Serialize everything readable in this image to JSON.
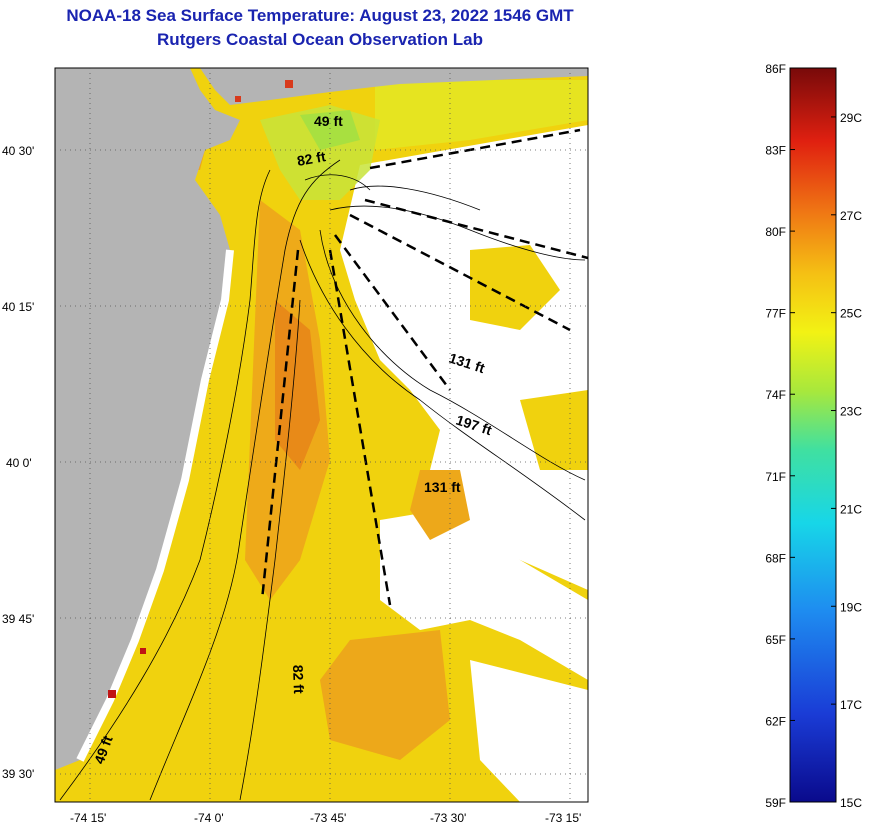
{
  "header": {
    "title": "NOAA-18 Sea Surface Temperature:  August 23, 2022 1546 GMT",
    "subtitle": "Rutgers Coastal Ocean Observation Lab"
  },
  "map": {
    "lat_ticks": [
      "40 30'",
      "40 15'",
      "40 0'",
      "39 45'",
      "39 30'"
    ],
    "lon_ticks": [
      "-74 15'",
      "-74 0'",
      "-73 45'",
      "-73 30'",
      "-73 15'"
    ],
    "depth_labels": [
      "49 ft",
      "82 ft",
      "131 ft",
      "197 ft",
      "131 ft",
      "82 ft",
      "49 ft"
    ]
  },
  "colorbar": {
    "fahrenheit": [
      "86F",
      "83F",
      "80F",
      "77F",
      "74F",
      "71F",
      "68F",
      "65F",
      "62F",
      "59F"
    ],
    "celsius": [
      "29C",
      "27C",
      "25C",
      "23C",
      "21C",
      "19C",
      "17C",
      "15C"
    ],
    "min_f": 59,
    "max_f": 86
  },
  "colors": {
    "title": "#1a24b0",
    "land": "#b4b4b4",
    "cloud": "#ffffff"
  }
}
